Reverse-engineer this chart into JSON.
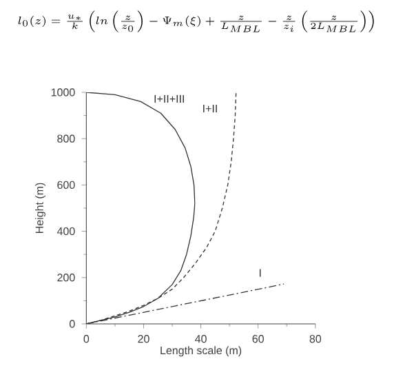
{
  "chart_data": {
    "type": "line",
    "xlabel": "Length scale (m)",
    "ylabel": "Height (m)",
    "annotations": [
      "l_0(z) = \\frac{u_*}{k}\\left(ln\\left(\\frac{z}{z_0}\\right) - \\Psi_m(\\xi) + \\frac{z}{L_{MBL}} - \\frac{z}{z_i}\\left(\\frac{z}{2L_{MBL}}\\right)\\right)"
    ],
    "xlim": [
      0,
      80
    ],
    "ylim": [
      0,
      1000
    ],
    "xticks": [
      0,
      20,
      40,
      60,
      80
    ],
    "yticks": [
      0,
      200,
      400,
      600,
      800,
      1000
    ],
    "grid": false,
    "series": [
      {
        "name": "I+II+III",
        "color": "#333333",
        "line_style": "solid",
        "x": [
          0,
          5,
          10,
          15,
          20,
          25,
          30,
          33,
          35,
          36.5,
          37.5,
          37.9,
          37.6,
          36.5,
          34.5,
          31,
          26,
          19,
          10,
          0
        ],
        "values": [
          0,
          15,
          30,
          50,
          75,
          110,
          170,
          230,
          300,
          380,
          460,
          520,
          600,
          680,
          760,
          840,
          910,
          960,
          990,
          1000
        ]
      },
      {
        "name": "I+II",
        "color": "#333333",
        "line_style": "dashed",
        "x": [
          0,
          5,
          10,
          15,
          20,
          25,
          30,
          34,
          38,
          42,
          45,
          47.5,
          49.4,
          50.6,
          51.4,
          52,
          52.3
        ],
        "values": [
          0,
          15,
          35,
          55,
          80,
          110,
          150,
          200,
          260,
          330,
          400,
          500,
          600,
          700,
          800,
          900,
          1000
        ]
      },
      {
        "name": "I",
        "color": "#333333",
        "line_style": "dashdot",
        "x": [
          0,
          69
        ],
        "values": [
          0,
          172
        ]
      }
    ]
  }
}
